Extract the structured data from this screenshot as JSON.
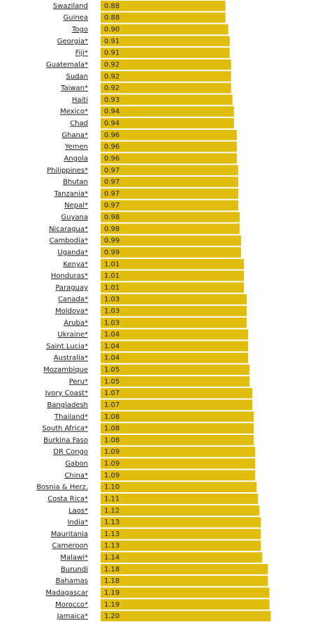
{
  "chart_data": {
    "type": "bar",
    "orientation": "horizontal",
    "color": "#e1be0e",
    "categories": [
      "Swaziland",
      "Guinea",
      "Togo",
      "Georgia*",
      "Fiji*",
      "Guatemala*",
      "Sudan",
      "Taiwan*",
      "Haiti",
      "Mexico*",
      "Chad",
      "Ghana*",
      "Yemen",
      "Angola",
      "Philippines*",
      "Bhutan",
      "Tanzania*",
      "Nepal*",
      "Guyana",
      "Nicaragua*",
      "Cambodia*",
      "Uganda*",
      "Kenya*",
      "Honduras*",
      "Paraguay",
      "Canada*",
      "Moldova*",
      "Aruba*",
      "Ukraine*",
      "Saint Lucia*",
      "Australia*",
      "Mozambique",
      "Peru*",
      "Ivory Coast*",
      "Bangladesh",
      "Thailand*",
      "South Africa*",
      "Burkina Faso",
      "DR Congo",
      "Gabon",
      "China*",
      "Bosnia & Herz.",
      "Costa Rica*",
      "Laos*",
      "India*",
      "Mauritania",
      "Cameroon",
      "Malawi*",
      "Burundi",
      "Bahamas",
      "Madagascar",
      "Morocco*",
      "Jamaica*"
    ],
    "values": [
      0.88,
      0.88,
      0.9,
      0.91,
      0.91,
      0.92,
      0.92,
      0.92,
      0.93,
      0.94,
      0.94,
      0.96,
      0.96,
      0.96,
      0.97,
      0.97,
      0.97,
      0.97,
      0.98,
      0.98,
      0.99,
      0.99,
      1.01,
      1.01,
      1.01,
      1.03,
      1.03,
      1.03,
      1.04,
      1.04,
      1.04,
      1.05,
      1.05,
      1.07,
      1.07,
      1.08,
      1.08,
      1.08,
      1.09,
      1.09,
      1.09,
      1.1,
      1.11,
      1.12,
      1.13,
      1.13,
      1.13,
      1.14,
      1.18,
      1.18,
      1.19,
      1.19,
      1.2
    ],
    "value_labels": [
      "0.88",
      "0.88",
      "0.90",
      "0.91",
      "0.91",
      "0.92",
      "0.92",
      "0.92",
      "0.93",
      "0.94",
      "0.94",
      "0.96",
      "0.96",
      "0.96",
      "0.97",
      "0.97",
      "0.97",
      "0.97",
      "0.98",
      "0.98",
      "0.99",
      "0.99",
      "1.01",
      "1.01",
      "1.01",
      "1.03",
      "1.03",
      "1.03",
      "1.04",
      "1.04",
      "1.04",
      "1.05",
      "1.05",
      "1.07",
      "1.07",
      "1.08",
      "1.08",
      "1.08",
      "1.09",
      "1.09",
      "1.09",
      "1.10",
      "1.11",
      "1.12",
      "1.13",
      "1.13",
      "1.13",
      "1.14",
      "1.18",
      "1.18",
      "1.19",
      "1.19",
      "1.20"
    ]
  }
}
